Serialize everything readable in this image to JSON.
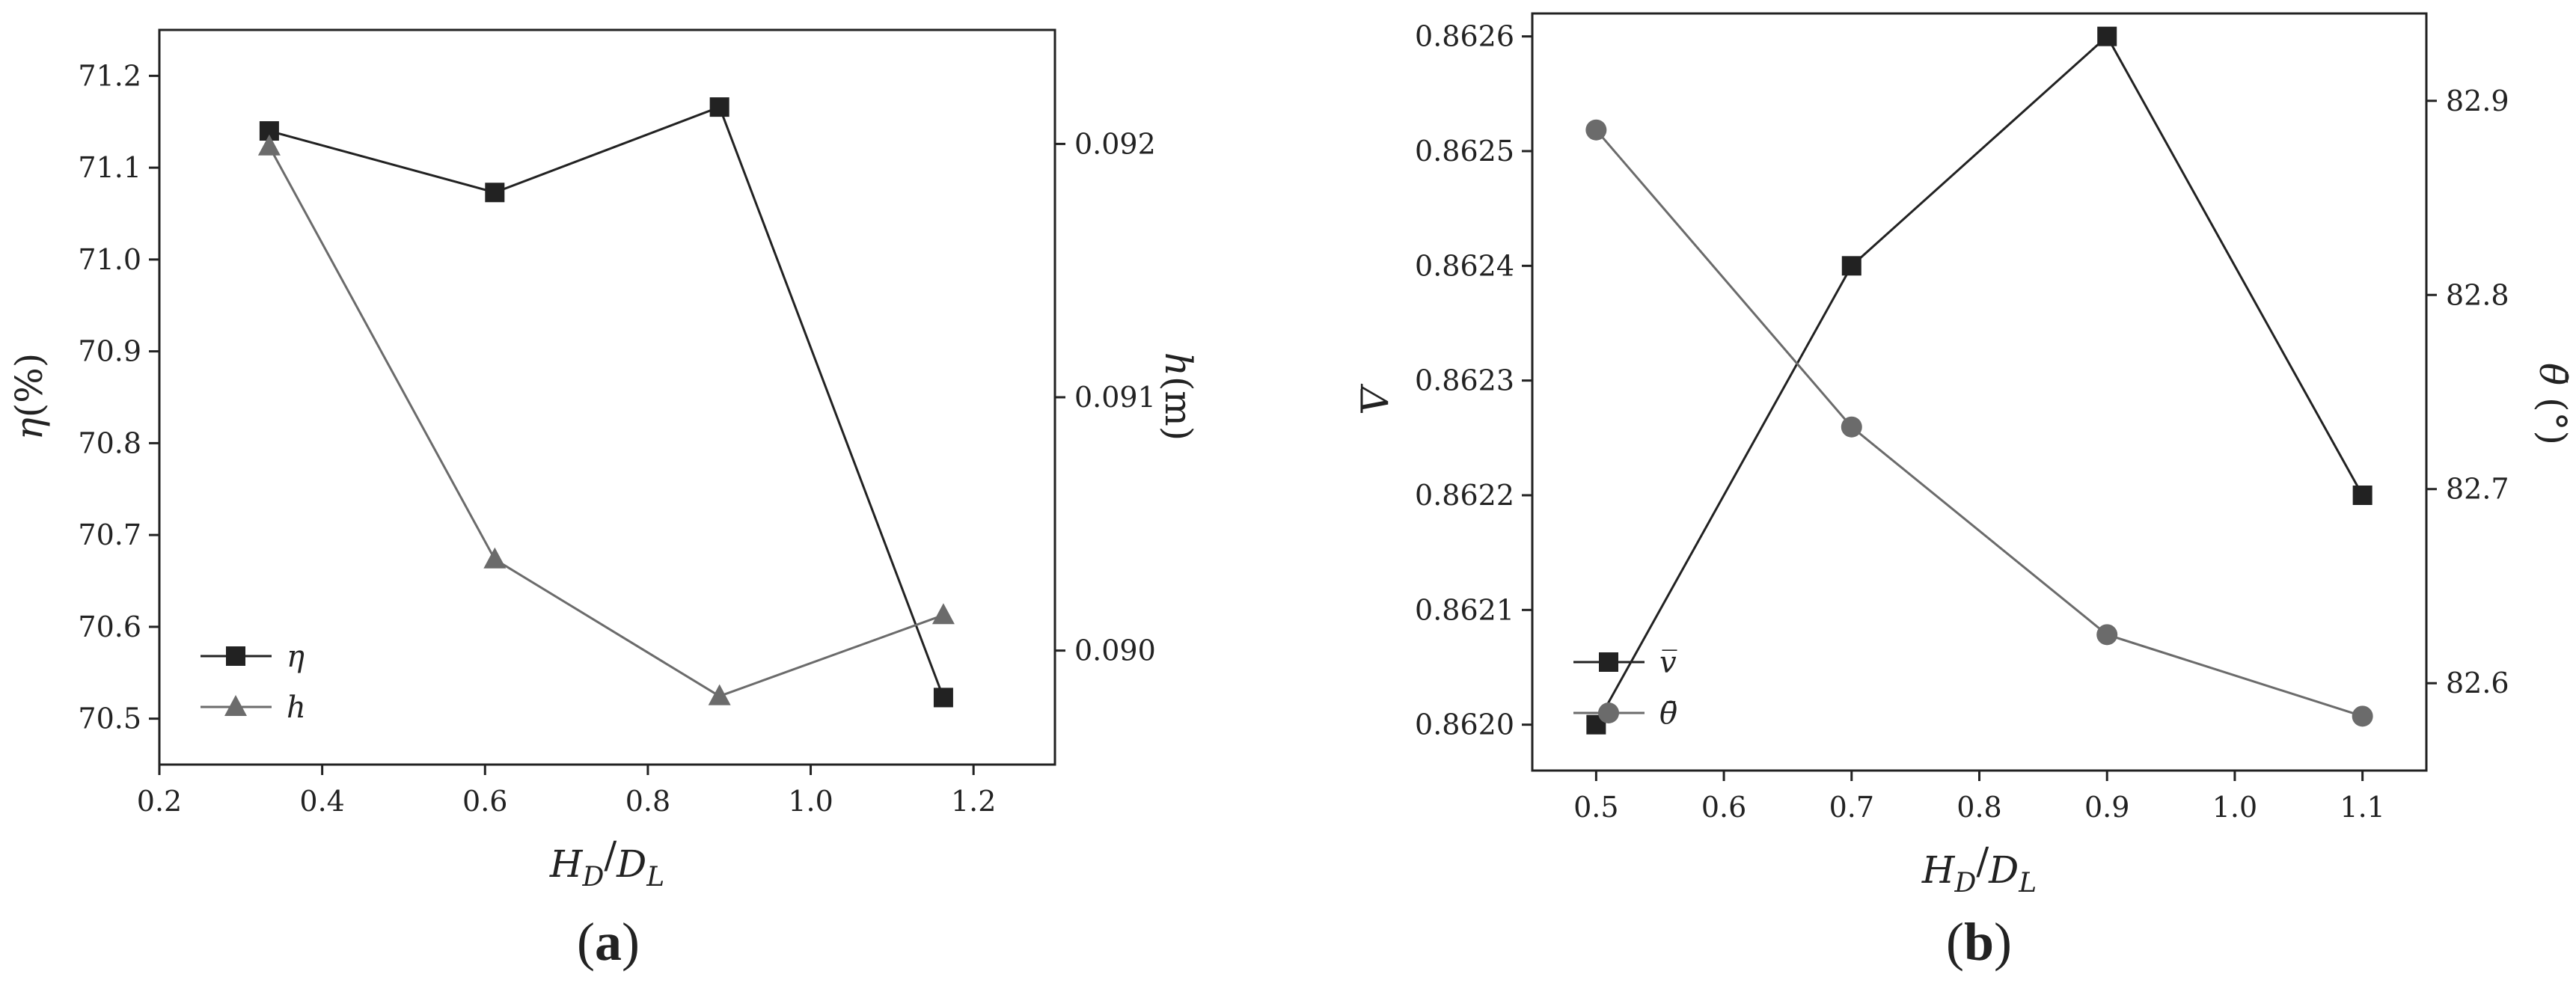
{
  "chart_data": [
    {
      "panel": "(a)",
      "panel_label_letter": "a",
      "type": "line",
      "xlabel": "H_D/D_L",
      "xlabel_main": "H",
      "xlabel_sub1": "D",
      "xlabel_slash": "/",
      "xlabel_main2": "D",
      "xlabel_sub2": "L",
      "x_ticks": [
        "0.2",
        "0.4",
        "0.6",
        "0.8",
        "1.0",
        "1.2"
      ],
      "xlim": [
        0.2,
        1.3
      ],
      "left_axis": {
        "label": "η(%)",
        "label_symbol": "η",
        "label_unit": "(%)",
        "ylim": [
          70.45,
          71.25
        ],
        "ticks": [
          "70.5",
          "70.6",
          "70.7",
          "70.8",
          "70.9",
          "71.0",
          "71.1",
          "71.2"
        ]
      },
      "right_axis": {
        "label": "h(m)",
        "label_symbol": "h",
        "label_unit": "(m)",
        "ylim": [
          0.08955,
          0.09245
        ],
        "ticks": [
          "0.090",
          "0.091",
          "0.092"
        ]
      },
      "series": [
        {
          "name": "η",
          "axis": "left",
          "marker": "square",
          "color": "#222222",
          "x": [
            0.335,
            0.612,
            0.888,
            1.163
          ],
          "y": [
            71.14,
            71.073,
            71.166,
            70.523
          ]
        },
        {
          "name": "h",
          "axis": "right",
          "marker": "triangle",
          "color": "#6b6b6b",
          "x": [
            0.335,
            0.612,
            0.888,
            1.163
          ],
          "y": [
            0.09199,
            0.09036,
            0.08982,
            0.09014
          ]
        }
      ],
      "legend": "bottom-left",
      "grid": false
    },
    {
      "panel": "(b)",
      "panel_label_letter": "b",
      "type": "line",
      "xlabel": "H_D/D_L",
      "xlabel_main": "H",
      "xlabel_sub1": "D",
      "xlabel_slash": "/",
      "xlabel_main2": "D",
      "xlabel_sub2": "L",
      "x_ticks": [
        "0.5",
        "0.6",
        "0.7",
        "0.8",
        "0.9",
        "1.0",
        "1.1"
      ],
      "xlim": [
        0.45,
        1.15
      ],
      "left_axis": {
        "label": "V̅",
        "ylim": [
          0.86196,
          0.86262
        ],
        "ticks": [
          "0.8620",
          "0.8621",
          "0.8622",
          "0.8623",
          "0.8624",
          "0.8625",
          "0.8626"
        ]
      },
      "right_axis": {
        "label": "θ̄ (°)",
        "label_symbol": "θ̄",
        "label_unit": "(°)",
        "ylim": [
          82.555,
          82.945
        ],
        "ticks": [
          "82.6",
          "82.7",
          "82.8",
          "82.9"
        ]
      },
      "series": [
        {
          "name": "v̅",
          "axis": "left",
          "marker": "square",
          "color": "#222222",
          "x": [
            0.5,
            0.7,
            0.9,
            1.1
          ],
          "y": [
            0.862,
            0.8624,
            0.8626,
            0.8622
          ]
        },
        {
          "name": "θ̄",
          "axis": "right",
          "marker": "circle",
          "color": "#6b6b6b",
          "x": [
            0.5,
            0.7,
            0.9,
            1.1
          ],
          "y": [
            82.885,
            82.732,
            82.625,
            82.583
          ]
        }
      ],
      "legend": "bottom-left",
      "grid": false
    }
  ]
}
